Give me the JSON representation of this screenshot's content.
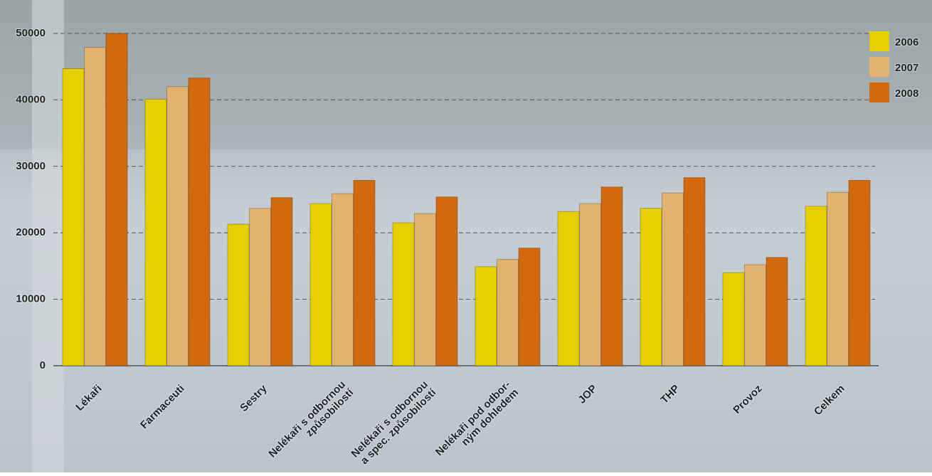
{
  "chart_data": {
    "type": "bar",
    "categories": [
      "Lékaři",
      "Farmaceuti",
      "Sestry",
      "Nelékaři s odbornou\nzpůsobilostí",
      "Nelékaři s odbornou\na spec. způsobilostí",
      "Nelékaři pod odbor-\nným dohledem",
      "JOP",
      "THP",
      "Provoz",
      "Celkem"
    ],
    "series": [
      {
        "name": "2006",
        "color": "#e6cf00",
        "values": [
          44700,
          40100,
          21300,
          24400,
          21500,
          14900,
          23200,
          23700,
          14000,
          24000
        ]
      },
      {
        "name": "2007",
        "color": "#e2b26e",
        "values": [
          47900,
          42000,
          23700,
          25900,
          22900,
          16000,
          24400,
          26000,
          15200,
          26100
        ]
      },
      {
        "name": "2008",
        "color": "#d4680c",
        "values": [
          50000,
          43300,
          25300,
          27900,
          25400,
          17700,
          26900,
          28300,
          16300,
          27900
        ]
      }
    ],
    "ylim": [
      0,
      50000
    ],
    "yticks": [
      0,
      10000,
      20000,
      30000,
      40000,
      50000
    ],
    "grid": true,
    "legend": "top-right"
  }
}
